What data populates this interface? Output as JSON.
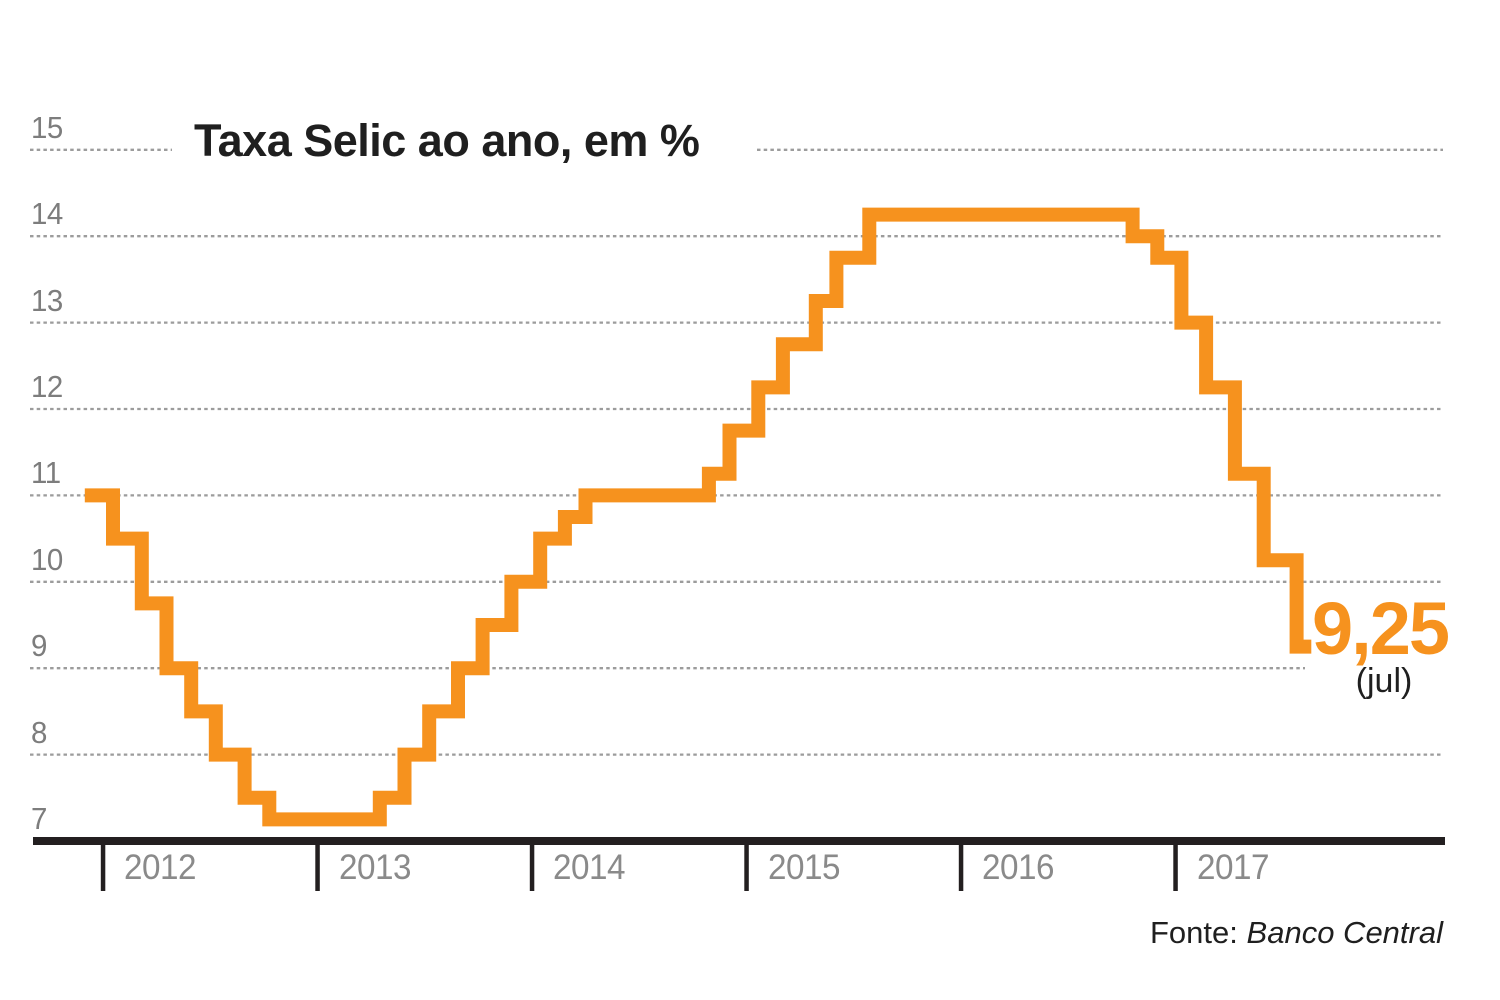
{
  "page": {
    "background": "#ffffff"
  },
  "title": "Taxa Selic ao ano, em %",
  "end_label": {
    "value": "9,25",
    "note": "(jul)"
  },
  "source": {
    "prefix": "Fonte:",
    "name": "Banco Central"
  },
  "colors": {
    "line": "#F6921E",
    "grid": "#9C9C9C",
    "axis": "#231F20",
    "y_tick_text": "#7D7D7D",
    "x_tick_text": "#8A8A8A",
    "title_text": "#1F1F1F",
    "source_text": "#1F1F1F"
  },
  "chart_data": {
    "type": "line",
    "subtype": "step",
    "title": "Taxa Selic ao ano, em %",
    "unit": "% ao ano",
    "ylim": [
      7,
      15.3
    ],
    "y_ticks": [
      7,
      8,
      9,
      10,
      11,
      12,
      13,
      14,
      15
    ],
    "x_ticks": [
      "2012",
      "2013",
      "2014",
      "2015",
      "2016",
      "2017"
    ],
    "grid": "horizontal dashed, no gridline at 7 (axis line)",
    "legend": "none",
    "series": [
      {
        "name": "Taxa Selic",
        "color": "#F6921E",
        "start": [
          "2011-12-01",
          11.0
        ],
        "changes": [
          [
            "2012-01-18",
            10.5
          ],
          [
            "2012-03-07",
            9.75
          ],
          [
            "2012-04-18",
            9.0
          ],
          [
            "2012-05-30",
            8.5
          ],
          [
            "2012-07-11",
            8.0
          ],
          [
            "2012-08-29",
            7.5
          ],
          [
            "2012-10-10",
            7.25
          ],
          [
            "2013-04-17",
            7.5
          ],
          [
            "2013-05-29",
            8.0
          ],
          [
            "2013-07-10",
            8.5
          ],
          [
            "2013-08-28",
            9.0
          ],
          [
            "2013-10-09",
            9.5
          ],
          [
            "2013-11-27",
            10.0
          ],
          [
            "2014-01-15",
            10.5
          ],
          [
            "2014-02-26",
            10.75
          ],
          [
            "2014-04-02",
            11.0
          ],
          [
            "2014-10-29",
            11.25
          ],
          [
            "2014-12-03",
            11.75
          ],
          [
            "2015-01-21",
            12.25
          ],
          [
            "2015-03-04",
            12.75
          ],
          [
            "2015-04-29",
            13.25
          ],
          [
            "2015-06-03",
            13.75
          ],
          [
            "2015-07-29",
            14.25
          ],
          [
            "2016-10-19",
            14.0
          ],
          [
            "2016-11-30",
            13.75
          ],
          [
            "2017-01-11",
            13.0
          ],
          [
            "2017-02-22",
            12.25
          ],
          [
            "2017-04-12",
            11.25
          ],
          [
            "2017-05-31",
            10.25
          ],
          [
            "2017-07-26",
            9.25
          ]
        ],
        "end": "2017-08-20",
        "final_value": 9.25,
        "final_value_label": "9,25 (jul)"
      }
    ]
  }
}
